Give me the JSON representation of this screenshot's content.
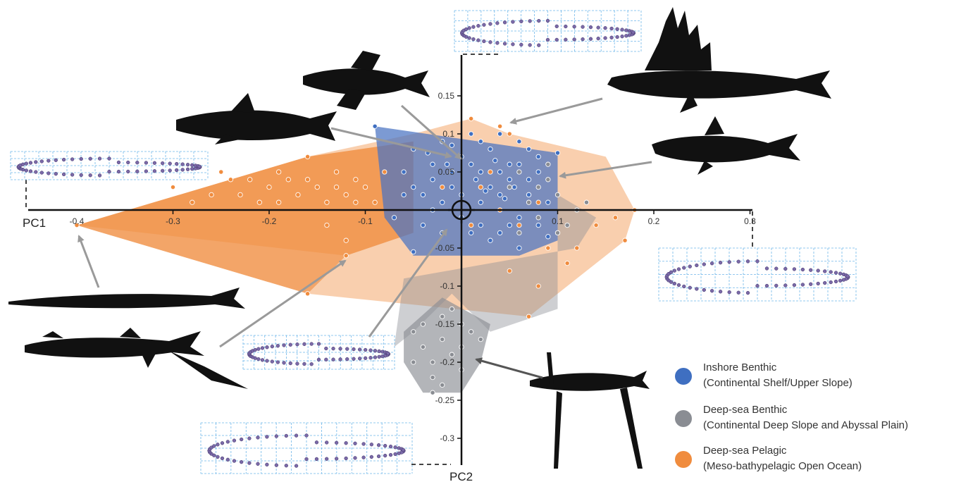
{
  "chart_data": {
    "type": "scatter",
    "title": "",
    "xlabel": "PC1",
    "ylabel": "PC2",
    "xlim": [
      -0.42,
      0.32
    ],
    "ylim": [
      -0.34,
      0.2
    ],
    "x_ticks": [
      -0.3,
      -0.2,
      -0.1,
      0.1,
      0.2,
      0.3
    ],
    "x_tick_labels": [
      "-0.3",
      "-0.2",
      "-0.1",
      "0.1",
      "0.2",
      "0.3"
    ],
    "x_extreme_label": "-0.4",
    "y_ticks": [
      0.15,
      0.1,
      0.05,
      -0.05,
      -0.1,
      -0.15,
      -0.2,
      -0.25,
      -0.3
    ],
    "y_tick_labels": [
      "0.15",
      "0.1",
      "0.05",
      "-0.05",
      "-0.1",
      "-0.15",
      "-0.2",
      "-0.25",
      "-0.3"
    ],
    "grid": false,
    "legend_position": "bottom-right",
    "series": [
      {
        "name": "Inshore Benthic",
        "subtitle": "(Continental Shelf/Upper Slope)",
        "color": "#3f6fc1",
        "hull_color": "#4a73c2",
        "hull": [
          [
            -0.09,
            0.11
          ],
          [
            0.1,
            0.075
          ],
          [
            0.1,
            -0.04
          ],
          [
            0.06,
            -0.06
          ],
          [
            -0.05,
            -0.06
          ],
          [
            -0.08,
            -0.01
          ]
        ],
        "points": [
          [
            -0.09,
            0.11
          ],
          [
            0.1,
            0.075
          ],
          [
            0.09,
            -0.035
          ],
          [
            0.06,
            -0.05
          ],
          [
            -0.05,
            -0.055
          ],
          [
            -0.07,
            -0.01
          ],
          [
            -0.06,
            0.05
          ],
          [
            -0.05,
            0.08
          ],
          [
            -0.04,
            0.02
          ],
          [
            -0.03,
            0.06
          ],
          [
            -0.02,
            0.09
          ],
          [
            -0.01,
            0.03
          ],
          [
            0,
            0.07
          ],
          [
            0.01,
            0.1
          ],
          [
            0.02,
            0.05
          ],
          [
            0.03,
            0.08
          ],
          [
            0.04,
            0.02
          ],
          [
            0.05,
            0.06
          ],
          [
            0.06,
            0.09
          ],
          [
            0.07,
            0.04
          ],
          [
            0.08,
            0.07
          ],
          [
            0.09,
            0.01
          ],
          [
            -0.04,
            -0.02
          ],
          [
            -0.02,
            -0.03
          ],
          [
            0,
            -0.01
          ],
          [
            0.02,
            -0.02
          ],
          [
            0.04,
            -0.03
          ],
          [
            0.06,
            -0.01
          ],
          [
            0.08,
            -0.02
          ],
          [
            -0.03,
            0.04
          ],
          [
            -0.01,
            0.05
          ],
          [
            0.01,
            0.06
          ],
          [
            0.03,
            0.03
          ],
          [
            0.05,
            0.04
          ],
          [
            0.07,
            0.02
          ],
          [
            -0.02,
            0.01
          ],
          [
            0,
            0.02
          ],
          [
            0.02,
            0.01
          ],
          [
            0.04,
            0.05
          ],
          [
            0.06,
            0.06
          ],
          [
            -0.05,
            0.03
          ],
          [
            -0.03,
            0
          ],
          [
            0.01,
            -0.03
          ],
          [
            0.03,
            -0.04
          ],
          [
            0.05,
            -0.02
          ],
          [
            -0.06,
            0.02
          ],
          [
            0.08,
            0.05
          ],
          [
            0.02,
            0.09
          ],
          [
            -0.01,
            0.085
          ],
          [
            0.04,
            0.1
          ],
          [
            0.07,
            0.08
          ],
          [
            -0.035,
            0.075
          ],
          [
            0.015,
            0.04
          ],
          [
            0.035,
            0.065
          ],
          [
            0.055,
            0.03
          ],
          [
            -0.015,
            0.06
          ],
          [
            0.025,
            0.025
          ],
          [
            0.045,
            0.015
          ]
        ]
      },
      {
        "name": "Deep-sea Benthic",
        "subtitle": "(Continental Deep Slope and Abyssal Plain)",
        "color": "#8a8d93",
        "hull_color": "#8a8d93",
        "hull": [
          [
            -0.05,
            -0.16
          ],
          [
            -0.01,
            -0.11
          ],
          [
            0.03,
            -0.16
          ],
          [
            0.1,
            -0.13
          ],
          [
            0.1,
            0.02
          ],
          [
            0.14,
            -0.01
          ],
          [
            0.12,
            -0.05
          ],
          [
            -0.06,
            -0.09
          ],
          [
            -0.07,
            -0.18
          ]
        ],
        "inner_hull": [
          [
            -0.06,
            -0.16
          ],
          [
            -0.02,
            -0.115
          ],
          [
            0.03,
            -0.15
          ],
          [
            0.02,
            -0.2
          ],
          [
            0,
            -0.24
          ],
          [
            -0.04,
            -0.24
          ],
          [
            -0.06,
            -0.2
          ]
        ],
        "points": [
          [
            -0.05,
            -0.16
          ],
          [
            -0.04,
            -0.18
          ],
          [
            -0.03,
            -0.2
          ],
          [
            -0.02,
            -0.17
          ],
          [
            -0.01,
            -0.19
          ],
          [
            0,
            -0.21
          ],
          [
            0.01,
            -0.16
          ],
          [
            -0.03,
            -0.22
          ],
          [
            -0.04,
            -0.15
          ],
          [
            -0.02,
            -0.14
          ],
          [
            -0.01,
            -0.13
          ],
          [
            0,
            -0.15
          ],
          [
            -0.05,
            -0.2
          ],
          [
            -0.03,
            -0.24
          ],
          [
            -0.02,
            -0.23
          ],
          [
            0,
            -0.18
          ],
          [
            0.02,
            -0.17
          ],
          [
            0.06,
            0.05
          ],
          [
            0.08,
            0.03
          ],
          [
            0.09,
            0.04
          ],
          [
            0.1,
            0.02
          ],
          [
            0.12,
            0
          ],
          [
            0.07,
            0.01
          ],
          [
            0.05,
            0.03
          ],
          [
            0.11,
            -0.02
          ],
          [
            0.13,
            0.01
          ],
          [
            0.08,
            -0.01
          ],
          [
            0.09,
            0.06
          ],
          [
            0.1,
            -0.03
          ],
          [
            0.06,
            -0.03
          ]
        ]
      },
      {
        "name": "Deep-sea Pelagic",
        "subtitle": "(Meso-bathypelagic Open Ocean)",
        "color": "#f08c3e",
        "hull_color": "#f08c3e",
        "hull": [
          [
            -0.4,
            -0.02
          ],
          [
            -0.16,
            0.07
          ],
          [
            -0.05,
            0.1
          ],
          [
            0.01,
            0.12
          ],
          [
            0.05,
            0.1
          ],
          [
            0.15,
            0.07
          ],
          [
            0.18,
            0
          ],
          [
            0.17,
            -0.04
          ],
          [
            0.07,
            -0.14
          ],
          [
            -0.16,
            -0.11
          ],
          [
            -0.12,
            -0.06
          ]
        ],
        "inner_hull": [
          [
            -0.4,
            -0.02
          ],
          [
            -0.16,
            0.07
          ],
          [
            -0.05,
            0.09
          ],
          [
            -0.05,
            -0.03
          ],
          [
            -0.12,
            -0.06
          ],
          [
            -0.16,
            -0.11
          ]
        ],
        "points": [
          [
            -0.4,
            -0.02
          ],
          [
            -0.16,
            0.07
          ],
          [
            -0.12,
            -0.06
          ],
          [
            -0.16,
            -0.11
          ],
          [
            0.01,
            0.12
          ],
          [
            0.05,
            0.1
          ],
          [
            0.04,
            0.11
          ],
          [
            0.18,
            0
          ],
          [
            0.17,
            -0.04
          ],
          [
            0.07,
            -0.14
          ],
          [
            -0.3,
            0.03
          ],
          [
            -0.28,
            0.01
          ],
          [
            -0.25,
            0.05
          ],
          [
            -0.23,
            0.02
          ],
          [
            -0.22,
            0.04
          ],
          [
            -0.2,
            0.03
          ],
          [
            -0.19,
            0.01
          ],
          [
            -0.18,
            0.04
          ],
          [
            -0.17,
            0.02
          ],
          [
            -0.15,
            0.03
          ],
          [
            -0.14,
            0.01
          ],
          [
            -0.13,
            0.05
          ],
          [
            -0.12,
            0.02
          ],
          [
            -0.11,
            0.04
          ],
          [
            -0.1,
            0.03
          ],
          [
            -0.09,
            0.01
          ],
          [
            -0.08,
            0.05
          ],
          [
            -0.26,
            0.02
          ],
          [
            -0.24,
            0.04
          ],
          [
            -0.21,
            0.01
          ],
          [
            -0.19,
            0.05
          ],
          [
            -0.16,
            0.04
          ],
          [
            -0.13,
            0.03
          ],
          [
            -0.11,
            0.01
          ],
          [
            -0.14,
            -0.02
          ],
          [
            -0.12,
            -0.04
          ],
          [
            0.02,
            0.03
          ],
          [
            0.04,
            0
          ],
          [
            0.06,
            -0.02
          ],
          [
            0.08,
            0.01
          ],
          [
            0.1,
            -0.03
          ],
          [
            0.12,
            -0.05
          ],
          [
            0.14,
            -0.02
          ],
          [
            0.16,
            -0.01
          ],
          [
            0.05,
            -0.08
          ],
          [
            0.08,
            -0.1
          ],
          [
            0.03,
            0.05
          ],
          [
            -0.02,
            0.03
          ],
          [
            0.01,
            -0.02
          ],
          [
            0.07,
            0.02
          ],
          [
            0.09,
            -0.05
          ],
          [
            0.11,
            -0.07
          ]
        ]
      }
    ]
  },
  "decor": {
    "silhouette_color": "#111111",
    "arrow_color": "#9a9a9a",
    "dark_arrow_color": "#555555",
    "outline_grid_color": "#6fb7ea",
    "outline_point_color": "#7b6aa8"
  }
}
